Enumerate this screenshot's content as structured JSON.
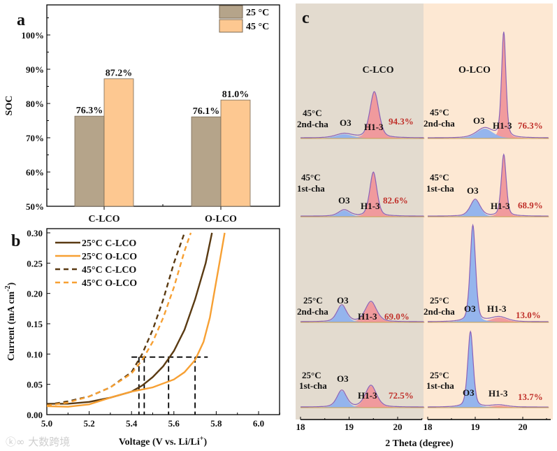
{
  "panel_labels": {
    "a": "a",
    "b": "b",
    "c": "c"
  },
  "watermark": "大数跨境",
  "chart_data": [
    {
      "type": "bar",
      "panel": "a",
      "ylabel": "SOC",
      "ylim": [
        50,
        108
      ],
      "yticks": [
        "50%",
        "60%",
        "70%",
        "80%",
        "90%",
        "100%"
      ],
      "ytick_values": [
        50,
        60,
        70,
        80,
        90,
        100
      ],
      "categories": [
        "C-LCO",
        "O-LCO"
      ],
      "series": [
        {
          "name": "25 °C",
          "color": "#b5a48a",
          "values": [
            76.3,
            76.1
          ],
          "labels": [
            "76.3%",
            "76.1%"
          ]
        },
        {
          "name": "45 °C",
          "color": "#fdc891",
          "values": [
            87.2,
            81.0
          ],
          "labels": [
            "87.2%",
            "81.0%"
          ]
        }
      ],
      "legend": "top-right"
    },
    {
      "type": "line",
      "panel": "b",
      "xlabel": "Voltage (V vs. Li/Li",
      "xlabel_sup": "+",
      "xlabel_end": ")",
      "ylabel": "Current (mA cm",
      "ylabel_sup": "-2",
      "ylabel_end": ")",
      "xlim": [
        5.0,
        6.1
      ],
      "ylim": [
        0.0,
        0.31
      ],
      "xticks": [
        "5.0",
        "5.2",
        "5.4",
        "5.6",
        "5.8",
        "6.0"
      ],
      "xtick_values": [
        5.0,
        5.2,
        5.4,
        5.6,
        5.8,
        6.0
      ],
      "yticks": [
        "0.00",
        "0.05",
        "0.10",
        "0.15",
        "0.20",
        "0.25",
        "0.30"
      ],
      "ytick_values": [
        0,
        0.05,
        0.1,
        0.15,
        0.2,
        0.25,
        0.3
      ],
      "legend": "top-left",
      "series": [
        {
          "name": "25°C C-LCO",
          "color": "#5a3a12",
          "dash": false,
          "x": [
            5.0,
            5.1,
            5.2,
            5.3,
            5.4,
            5.45,
            5.5,
            5.55,
            5.6,
            5.65,
            5.7,
            5.75,
            5.78
          ],
          "y": [
            0.018,
            0.018,
            0.021,
            0.028,
            0.038,
            0.048,
            0.062,
            0.08,
            0.105,
            0.14,
            0.19,
            0.25,
            0.3
          ]
        },
        {
          "name": "25°C O-LCO",
          "color": "#f7a033",
          "dash": false,
          "x": [
            5.0,
            5.1,
            5.2,
            5.3,
            5.4,
            5.5,
            5.6,
            5.65,
            5.7,
            5.74,
            5.77,
            5.8,
            5.82,
            5.84
          ],
          "y": [
            0.014,
            0.013,
            0.017,
            0.028,
            0.038,
            0.045,
            0.058,
            0.07,
            0.09,
            0.12,
            0.16,
            0.22,
            0.26,
            0.3
          ]
        },
        {
          "name": "45°C C-LCO",
          "color": "#5a3a12",
          "dash": true,
          "x": [
            5.0,
            5.1,
            5.2,
            5.3,
            5.4,
            5.45,
            5.5,
            5.55,
            5.6,
            5.65
          ],
          "y": [
            0.016,
            0.022,
            0.03,
            0.045,
            0.07,
            0.1,
            0.14,
            0.19,
            0.25,
            0.3
          ]
        },
        {
          "name": "45°C O-LCO",
          "color": "#f7a033",
          "dash": true,
          "x": [
            5.0,
            5.1,
            5.2,
            5.3,
            5.4,
            5.45,
            5.5,
            5.55,
            5.6,
            5.65,
            5.68
          ],
          "y": [
            0.015,
            0.02,
            0.03,
            0.045,
            0.068,
            0.09,
            0.12,
            0.16,
            0.21,
            0.27,
            0.3
          ]
        }
      ],
      "reference_lines": {
        "current": 0.095,
        "x_from": 5.4,
        "x_to": 5.76,
        "voltages": [
          5.435,
          5.46,
          5.575,
          5.7
        ]
      }
    },
    {
      "type": "area",
      "panel": "c",
      "xlabel": "2 Theta (degree)",
      "xticks": [
        "18",
        "19",
        "20"
      ],
      "xtick_values": [
        18,
        19,
        20
      ],
      "xlim": [
        18,
        20.55
      ],
      "columns": [
        "C-LCO",
        "O-LCO"
      ],
      "phase_colors": {
        "O3": "#8fb2ee",
        "H1-3": "#f0979a",
        "envelope": "#8a62b8"
      },
      "backgrounds": {
        "C-LCO": "#e3dbcf",
        "O-LCO": "#fde8d3"
      },
      "rows": [
        {
          "temp": "45°C",
          "cycle": "2nd-cha",
          "C-LCO": {
            "O3": {
              "label": "O3",
              "center": 18.9,
              "height": 6,
              "width": 0.3
            },
            "H1-3": {
              "label": "H1-3",
              "center": 19.52,
              "height": 66,
              "width": 0.16
            },
            "h13_fraction": "94.3%"
          },
          "O-LCO": {
            "O3": {
              "label": "O3",
              "center": 19.2,
              "height": 14,
              "width": 0.3
            },
            "H1-3": {
              "label": "H1-3",
              "center": 19.6,
              "height": 150,
              "width": 0.08
            },
            "h13_fraction": "76.3%"
          }
        },
        {
          "temp": "45°C",
          "cycle": "1st-cha",
          "C-LCO": {
            "O3": {
              "label": "O3",
              "center": 18.9,
              "height": 9,
              "width": 0.2
            },
            "H1-3": {
              "label": "H1-3",
              "center": 19.5,
              "height": 63,
              "width": 0.13
            },
            "h13_fraction": "82.6%"
          },
          "O-LCO": {
            "O3": {
              "label": "O3",
              "center": 19.0,
              "height": 24,
              "width": 0.18
            },
            "H1-3": {
              "label": "H1-3",
              "center": 19.6,
              "height": 88,
              "width": 0.09
            },
            "h13_fraction": "68.9%"
          }
        },
        {
          "temp": "25°C",
          "cycle": "2nd-cha",
          "C-LCO": {
            "O3": {
              "label": "O3",
              "center": 18.85,
              "height": 24,
              "width": 0.17
            },
            "H1-3": {
              "label": "H1-3",
              "center": 19.45,
              "height": 29,
              "width": 0.2
            },
            "h13_fraction": "69.0%"
          },
          "O-LCO": {
            "O3": {
              "label": "O3",
              "center": 18.95,
              "height": 138,
              "width": 0.1
            },
            "H1-3": {
              "label": "H1-3",
              "center": 19.5,
              "height": 7,
              "width": 0.3
            },
            "h13_fraction": "13.0%"
          }
        },
        {
          "temp": "25°C",
          "cycle": "1st-cha",
          "C-LCO": {
            "O3": {
              "label": "O3",
              "center": 18.85,
              "height": 24,
              "width": 0.17
            },
            "H1-3": {
              "label": "H1-3",
              "center": 19.45,
              "height": 31,
              "width": 0.2
            },
            "h13_fraction": "72.5%"
          },
          "O-LCO": {
            "O3": {
              "label": "O3",
              "center": 18.9,
              "height": 108,
              "width": 0.1
            },
            "H1-3": {
              "label": "H1-3",
              "center": 19.5,
              "height": 3,
              "width": 0.3
            },
            "h13_fraction": "13.7%"
          }
        }
      ]
    }
  ]
}
